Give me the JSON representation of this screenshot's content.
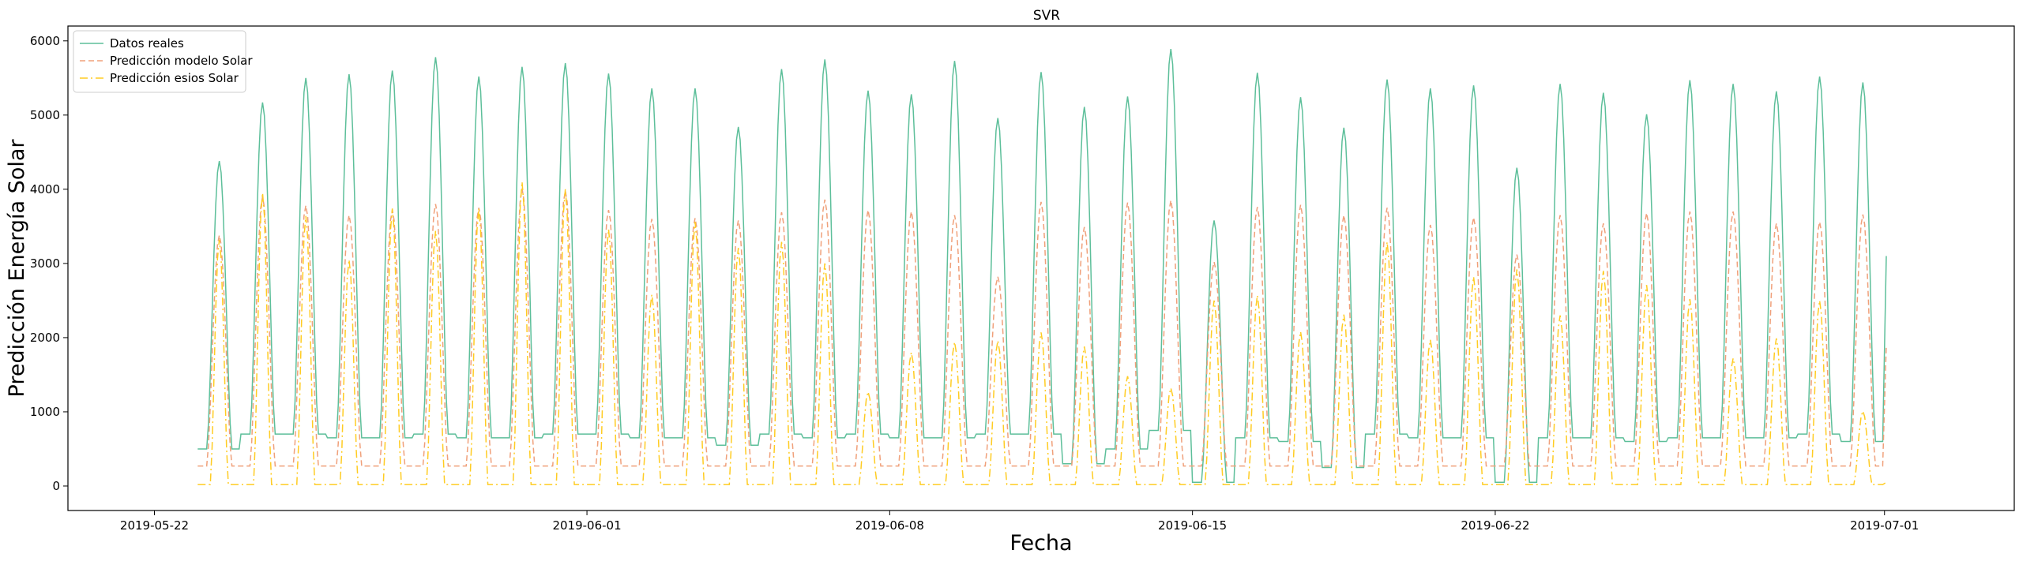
{
  "chart_data": {
    "type": "line",
    "title": "SVR",
    "xlabel": "Fecha",
    "ylabel": "Predicción Energía Solar",
    "xlim": [
      "2019-05-20T00:00",
      "2019-07-04T00:00"
    ],
    "ylim": [
      -330,
      6200
    ],
    "x_ticks": [
      "2019-05-22",
      "2019-06-01",
      "2019-06-08",
      "2019-06-15",
      "2019-06-22",
      "2019-07-01"
    ],
    "y_ticks": [
      0,
      1000,
      2000,
      3000,
      4000,
      5000,
      6000
    ],
    "legend_position": "upper-left",
    "grid": false,
    "start_date": "2019-05-23",
    "points_per_day": 24,
    "series": [
      {
        "name": "Datos reales",
        "color": "#5dbf9a",
        "style": "solid",
        "day_peaks": [
          4380,
          5170,
          5500,
          5550,
          5600,
          5780,
          5520,
          5650,
          5700,
          5560,
          5360,
          5360,
          4840,
          5620,
          5750,
          5330,
          5280,
          5730,
          4960,
          5580,
          5110,
          5250,
          5890,
          3580,
          5570,
          5240,
          4830,
          5480,
          5360,
          5400,
          4290,
          5420,
          5300,
          5010,
          5470,
          5420,
          5320,
          5520,
          5440
        ],
        "day_night": [
          500,
          700,
          700,
          650,
          650,
          700,
          650,
          650,
          700,
          700,
          650,
          650,
          550,
          700,
          650,
          700,
          650,
          650,
          700,
          700,
          300,
          500,
          750,
          50,
          650,
          600,
          250,
          700,
          650,
          650,
          50,
          650,
          650,
          600,
          650,
          650,
          650,
          700,
          600
        ],
        "tail": [
          3100
        ]
      },
      {
        "name": "Predicción modelo Solar",
        "color": "#f0a07a",
        "style": "dashed",
        "day_peaks": [
          3380,
          3900,
          3780,
          3650,
          3720,
          3800,
          3750,
          4010,
          3980,
          3720,
          3600,
          3610,
          3580,
          3690,
          3860,
          3720,
          3700,
          3650,
          2820,
          3830,
          3490,
          3820,
          3850,
          3020,
          3760,
          3790,
          3650,
          3750,
          3520,
          3620,
          3120,
          3650,
          3540,
          3680,
          3700,
          3700,
          3540,
          3560,
          3660
        ],
        "night_level": 270,
        "tail": [
          1900
        ]
      },
      {
        "name": "Predicción esios Solar",
        "color": "#ffcc22",
        "style": "dashdot",
        "day_peaks": [
          3320,
          3950,
          3640,
          3050,
          3740,
          3440,
          3740,
          4100,
          4000,
          3460,
          2580,
          3560,
          3210,
          3290,
          3000,
          1270,
          1800,
          1940,
          1960,
          2070,
          1880,
          1480,
          1320,
          2500,
          2570,
          2080,
          2310,
          3290,
          1970,
          2820,
          2920,
          2300,
          2900,
          2710,
          2520,
          1720,
          1990,
          2500,
          1010
        ],
        "night_level": 20,
        "tail": [
          50
        ]
      }
    ]
  }
}
